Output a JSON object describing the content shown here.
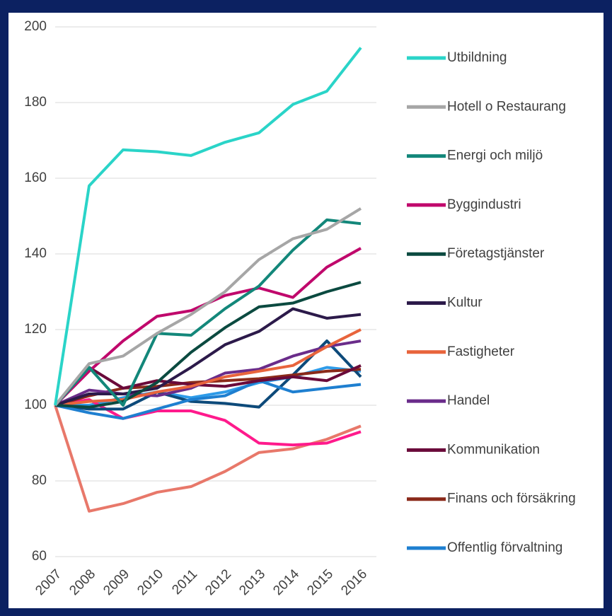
{
  "chart_data": {
    "type": "line",
    "categories": [
      "2007",
      "2008",
      "2009",
      "2010",
      "2011",
      "2012",
      "2013",
      "2014",
      "2015",
      "2016"
    ],
    "ylim": [
      60,
      200
    ],
    "yticks": [
      60,
      80,
      100,
      120,
      140,
      160,
      180,
      200
    ],
    "grid": true,
    "series": [
      {
        "name": "Utbildning",
        "color": "#2ad4c8",
        "values": [
          100,
          158,
          167.5,
          167,
          166,
          169.5,
          172,
          179.5,
          183,
          194.5
        ]
      },
      {
        "name": "Hotell o Restaurang",
        "color": "#a6a6a6",
        "values": [
          100,
          111,
          113,
          119,
          124,
          130,
          138.5,
          144,
          146.5,
          152
        ]
      },
      {
        "name": "Energi och miljö",
        "color": "#13877a",
        "values": [
          100,
          110,
          100,
          119,
          118.5,
          125.5,
          131.5,
          141,
          149,
          148
        ]
      },
      {
        "name": "Byggindustri",
        "color": "#c0086c",
        "values": [
          100,
          109,
          117,
          123.5,
          125,
          129,
          131,
          128.5,
          136.5,
          141.5
        ]
      },
      {
        "name": "Företagstjänster",
        "color": "#0b4a40",
        "values": [
          100,
          99.5,
          101,
          106,
          114,
          120.5,
          126,
          127,
          130,
          132.5
        ]
      },
      {
        "name": "Kultur",
        "color": "#2c1a4a",
        "values": [
          100,
          103,
          103,
          104.5,
          110,
          116,
          119.5,
          125.5,
          123,
          124
        ]
      },
      {
        "name": "Fastigheter",
        "color": "#e8643c",
        "values": [
          100,
          101,
          101.5,
          103.5,
          105,
          107.5,
          109,
          110.5,
          115.5,
          120
        ]
      },
      {
        "name": "Handel",
        "color": "#6a2c8a",
        "values": [
          100,
          104,
          103,
          102.5,
          104.5,
          108.5,
          109.5,
          113,
          115.5,
          117
        ]
      },
      {
        "name": "Kommunikation",
        "color": "#6a0a3a",
        "values": [
          100,
          110,
          104.5,
          106.5,
          105.5,
          105,
          106.5,
          107.5,
          106.5,
          110.5
        ]
      },
      {
        "name": "Finans och försäkring",
        "color": "#8a2a1a",
        "values": [
          100,
          102.5,
          104.5,
          105,
          106,
          106.5,
          107,
          108,
          109,
          109.5
        ]
      },
      {
        "name": "Offentlig förvaltning",
        "color": "#1e7fd0",
        "values": [
          100,
          98,
          96.5,
          99,
          101.5,
          102.5,
          106.5,
          103.5,
          104.5,
          105.5
        ]
      },
      {
        "color": "#0d4a7a",
        "values": [
          100,
          99,
          99,
          103.5,
          101,
          100.5,
          99.5,
          108,
          117,
          107.5
        ]
      },
      {
        "color": "#ff1a8c",
        "values": [
          100,
          101.5,
          96.5,
          98.5,
          98.5,
          96,
          90,
          89.5,
          90,
          93
        ]
      },
      {
        "color": "#e8786a",
        "values": [
          100,
          72,
          74,
          77,
          78.5,
          82.5,
          87.5,
          88.5,
          91,
          94.5
        ]
      },
      {
        "color": "#2e9be8",
        "values": [
          100,
          100,
          102,
          103.5,
          102,
          103.5,
          106,
          107.5,
          110,
          109
        ]
      }
    ]
  }
}
